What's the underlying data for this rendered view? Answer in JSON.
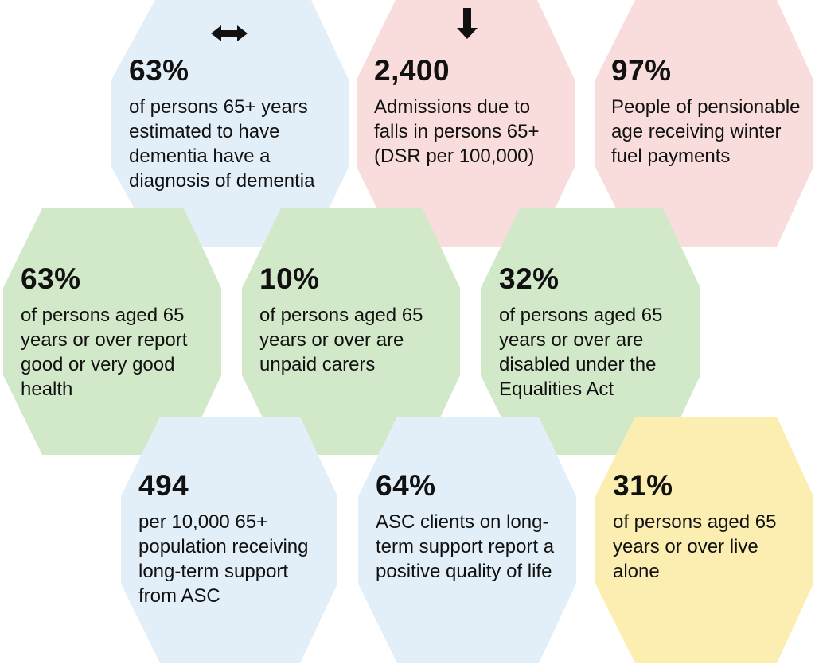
{
  "colors": {
    "blue": "#e3eff8",
    "pink": "#f9dcdc",
    "green": "#d2e9c9",
    "yellow": "#fbeeb0"
  },
  "tiles": [
    {
      "id": "dementia-diagnosis",
      "value": "63%",
      "description": "of persons 65+ years estimated to have dementia have a diagnosis of dementia",
      "color": "blue",
      "trend_icon": "left-right-arrow-icon"
    },
    {
      "id": "falls-admissions",
      "value": "2,400",
      "description": "Admissions due to falls in persons 65+ (DSR per 100,000)",
      "color": "pink",
      "trend_icon": "down-arrow-icon"
    },
    {
      "id": "winter-fuel",
      "value": "97%",
      "description": "People of pensionable age receiving winter fuel payments",
      "color": "pink"
    },
    {
      "id": "good-health",
      "value": "63%",
      "description": "of persons aged 65 years or over report good or very good health",
      "color": "green"
    },
    {
      "id": "unpaid-carers",
      "value": "10%",
      "description": "of persons aged 65 years or over are unpaid carers",
      "color": "green"
    },
    {
      "id": "disabled",
      "value": "32%",
      "description": "of persons aged 65 years or over are disabled under the Equalities Act",
      "color": "green"
    },
    {
      "id": "long-term-support",
      "value": "494",
      "description": "per 10,000 65+ population receiving long-term support from ASC",
      "color": "blue"
    },
    {
      "id": "quality-of-life",
      "value": "64%",
      "description": "ASC clients on long-term support report a positive quality of life",
      "color": "blue"
    },
    {
      "id": "live-alone",
      "value": "31%",
      "description": "of persons aged 65 years or over live alone",
      "color": "yellow"
    }
  ]
}
